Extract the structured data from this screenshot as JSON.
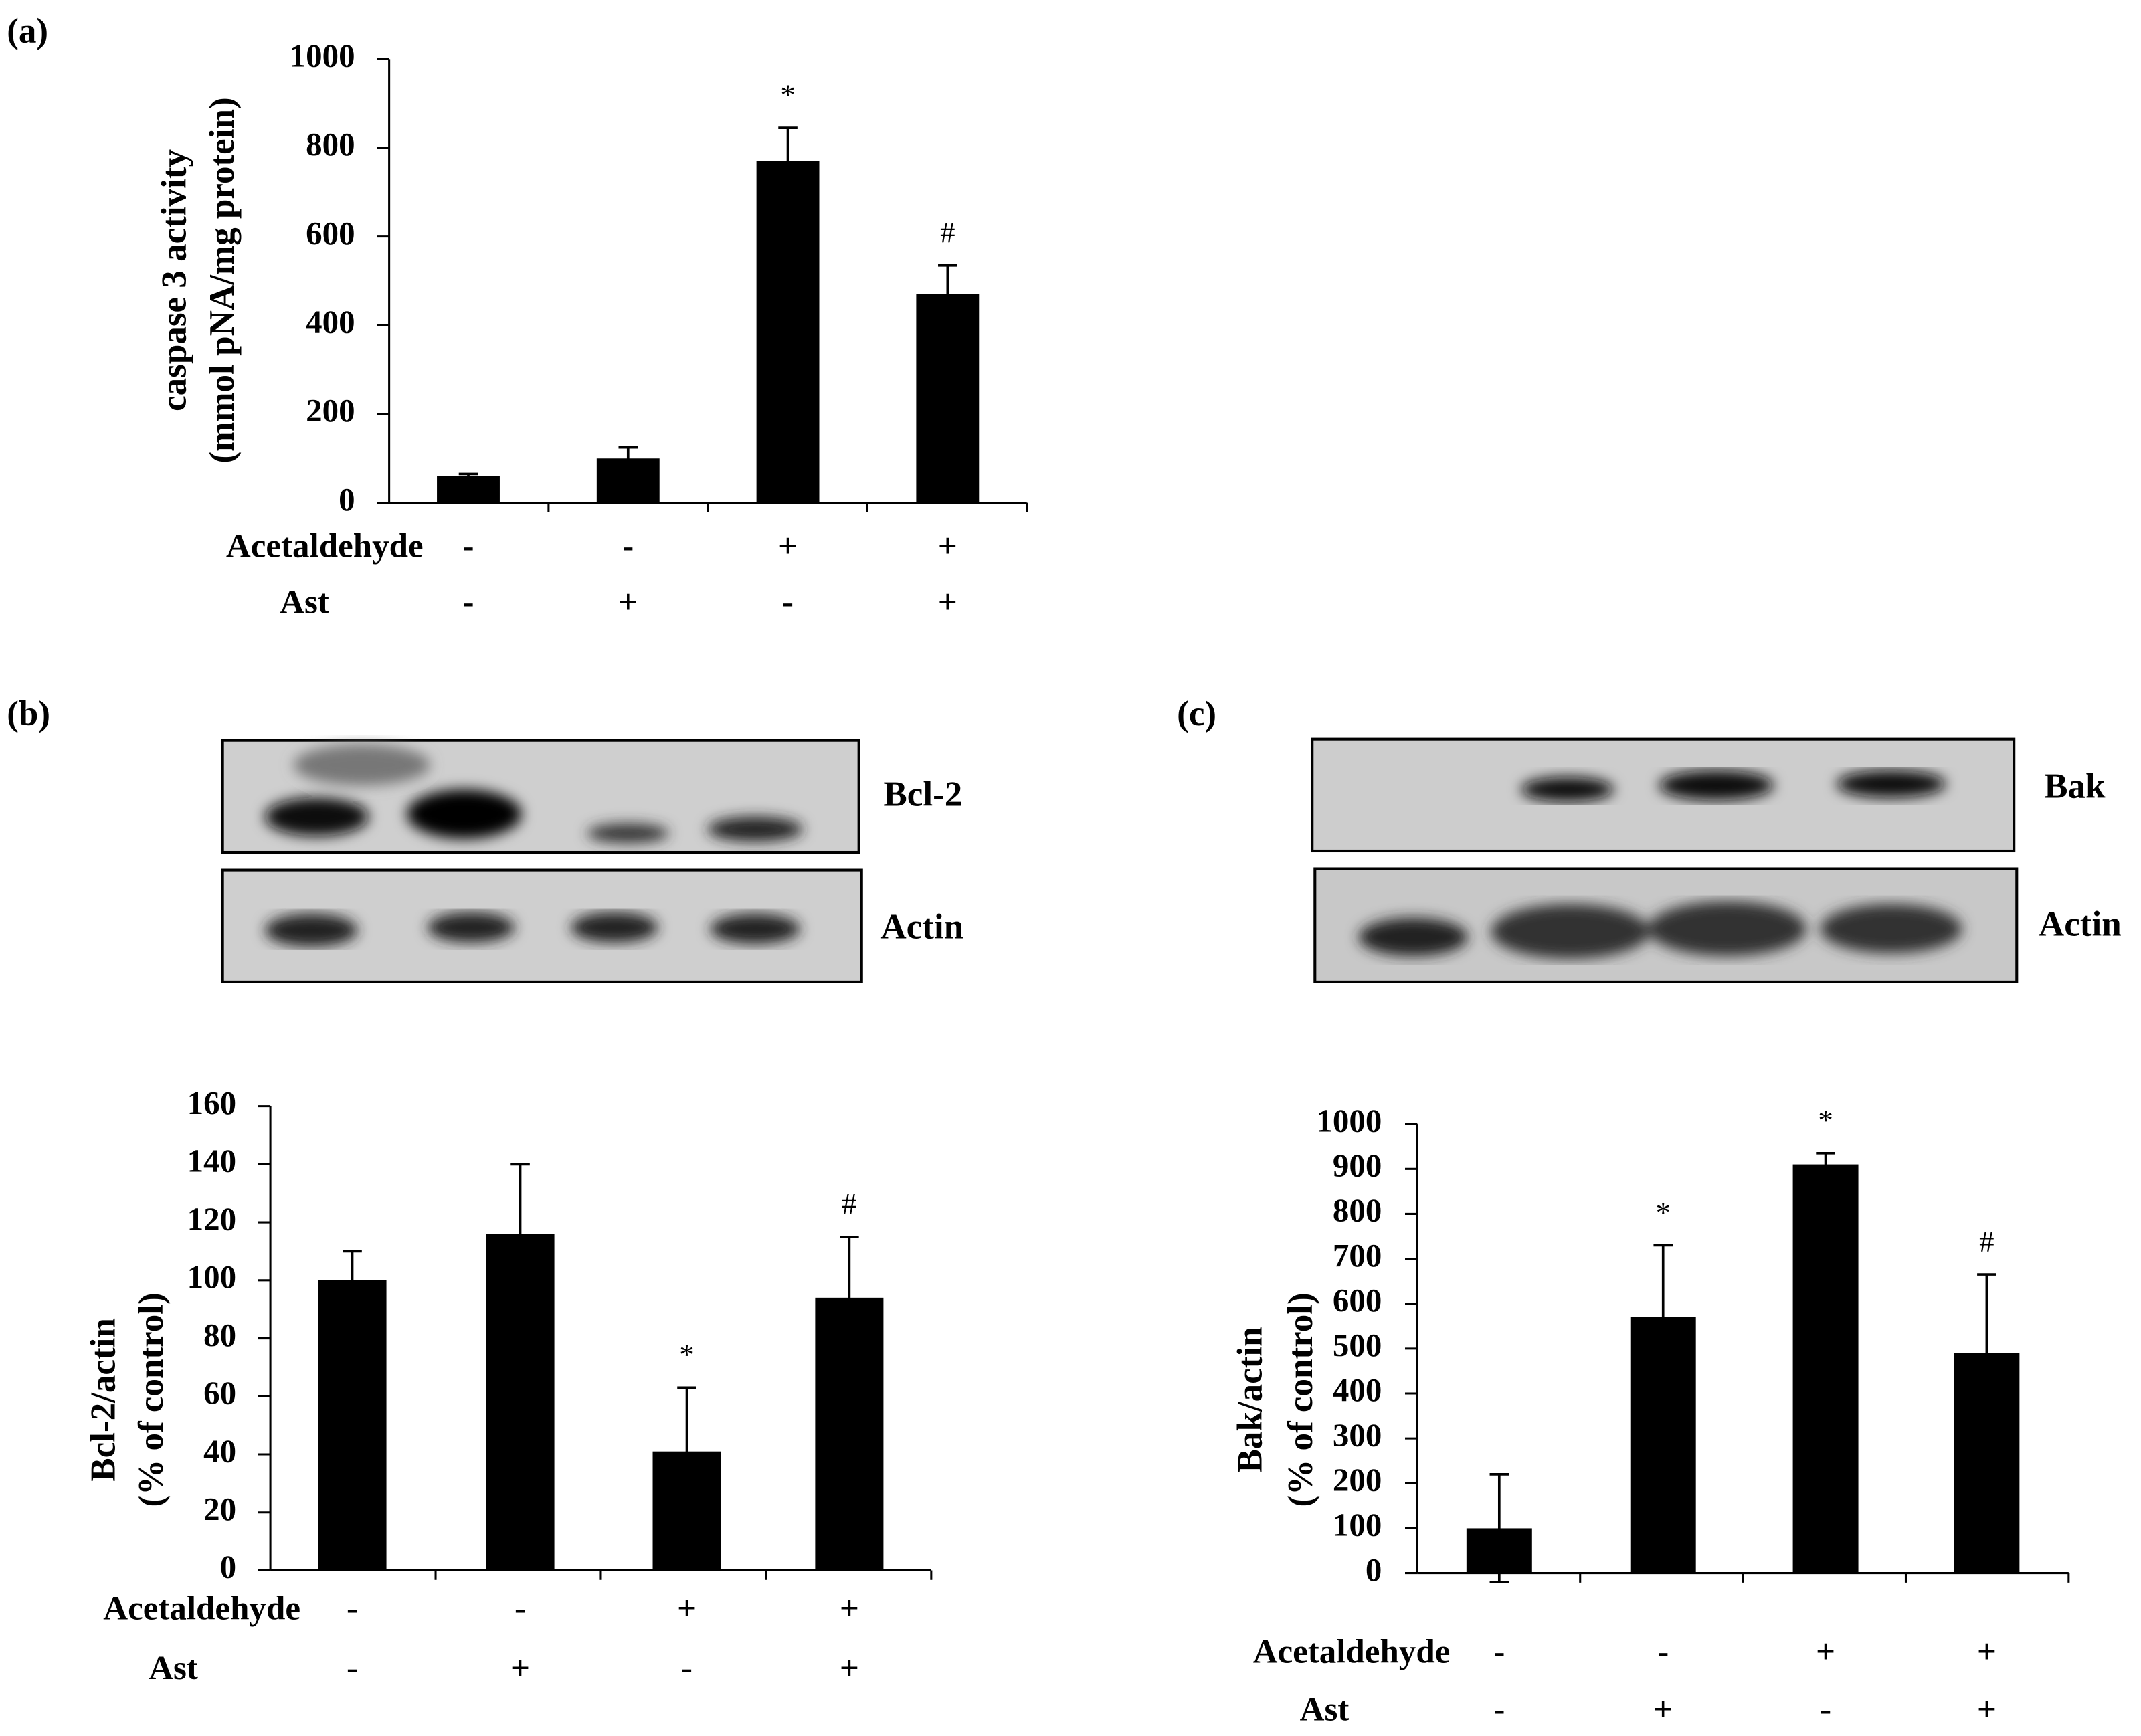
{
  "chart_data": [
    {
      "type": "bar",
      "panel_label": "(a)",
      "ylabel": [
        "caspase 3 activity",
        "(mmol pNA/mg protein)"
      ],
      "conditions": [
        {
          "name": "Acetaldehyde",
          "values": [
            "-",
            "-",
            "+",
            "+"
          ]
        },
        {
          "name": "Ast",
          "values": [
            "-",
            "+",
            "-",
            "+"
          ]
        }
      ],
      "values": [
        60,
        100,
        770,
        470
      ],
      "errors": [
        5,
        25,
        75,
        65
      ],
      "markers": [
        null,
        null,
        "*",
        "#"
      ],
      "color": "#000000",
      "ylim": [
        0,
        1000
      ],
      "yticks": [
        0,
        200,
        400,
        600,
        800,
        1000
      ]
    },
    {
      "type": "bar",
      "panel_label": "(b)",
      "blot_labels": [
        "Bcl-2",
        "Actin"
      ],
      "ylabel": [
        "Bcl-2/actin",
        "(% of control)"
      ],
      "conditions": [
        {
          "name": "Acetaldehyde",
          "values": [
            "-",
            "-",
            "+",
            "+"
          ]
        },
        {
          "name": "Ast",
          "values": [
            "-",
            "+",
            "-",
            "+"
          ]
        }
      ],
      "values": [
        100,
        116,
        41,
        94
      ],
      "errors": [
        10,
        24,
        22,
        21
      ],
      "markers": [
        null,
        null,
        "*",
        "#"
      ],
      "color": "#000000",
      "ylim": [
        0,
        160
      ],
      "yticks": [
        0,
        20,
        40,
        60,
        80,
        100,
        120,
        140,
        160
      ]
    },
    {
      "type": "bar",
      "panel_label": "(c)",
      "blot_labels": [
        "Bak",
        "Actin"
      ],
      "ylabel": [
        "Bak/actin",
        "(% of control)"
      ],
      "conditions": [
        {
          "name": "Acetaldehyde",
          "values": [
            "-",
            "-",
            "+",
            "+"
          ]
        },
        {
          "name": "Ast",
          "values": [
            "-",
            "+",
            "-",
            "+"
          ]
        }
      ],
      "values": [
        100,
        570,
        910,
        490
      ],
      "errors": [
        120,
        160,
        25,
        175
      ],
      "markers": [
        null,
        "*",
        "*",
        "#"
      ],
      "color": "#000000",
      "ylim": [
        0,
        1000
      ],
      "yticks": [
        0,
        100,
        200,
        300,
        400,
        500,
        600,
        700,
        800,
        900,
        1000
      ]
    }
  ]
}
